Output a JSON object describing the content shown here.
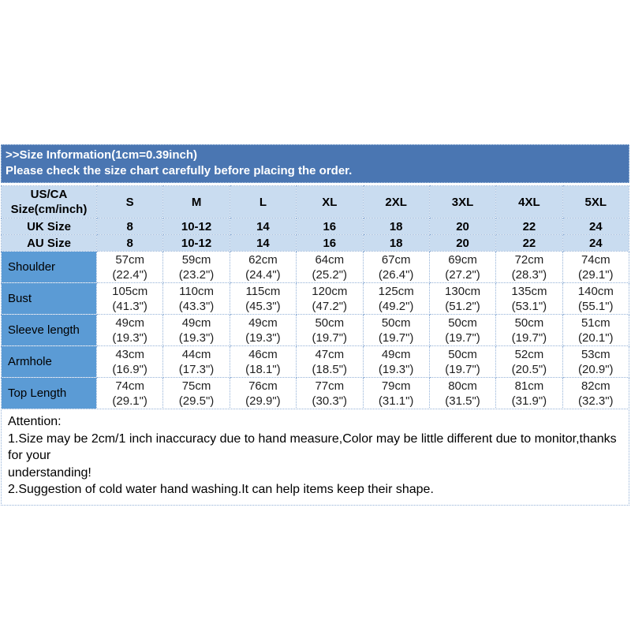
{
  "colors": {
    "banner_bg": "#4a76b2",
    "banner_text": "#ffffff",
    "header_row_bg": "#c9dcf0",
    "label_column_bg": "#5b9bd5",
    "dotted_border": "#93b1d7",
    "cell_bg": "#ffffff",
    "body_text": "#000000"
  },
  "chart_data": {
    "type": "table",
    "title": ">>Size Information(1cm=0.39inch)",
    "subtitle": "Please check the size chart carefully before placing the order.",
    "header": [
      "US/CA\nSize(cm/inch)",
      "S",
      "M",
      "L",
      "XL",
      "2XL",
      "3XL",
      "4XL",
      "5XL"
    ],
    "rows": [
      [
        "UK Size",
        "8",
        "10-12",
        "14",
        "16",
        "18",
        "20",
        "22",
        "24"
      ],
      [
        "AU Size",
        "8",
        "10-12",
        "14",
        "16",
        "18",
        "20",
        "22",
        "24"
      ],
      [
        "Shoulder",
        "57cm\n(22.4\")",
        "59cm\n(23.2\")",
        "62cm\n(24.4\")",
        "64cm\n(25.2\")",
        "67cm\n(26.4\")",
        "69cm\n(27.2\")",
        "72cm\n(28.3\")",
        "74cm\n(29.1\")"
      ],
      [
        "Bust",
        "105cm\n(41.3\")",
        "110cm\n(43.3\")",
        "115cm\n(45.3\")",
        "120cm\n(47.2\")",
        "125cm\n(49.2\")",
        "130cm\n(51.2\")",
        "135cm\n(53.1\")",
        "140cm\n(55.1\")"
      ],
      [
        "Sleeve length",
        "49cm\n(19.3\")",
        "49cm\n(19.3\")",
        "49cm\n(19.3\")",
        "50cm\n(19.7\")",
        "50cm\n(19.7\")",
        "50cm\n(19.7\")",
        "50cm\n(19.7\")",
        "51cm\n(20.1\")"
      ],
      [
        "Armhole",
        "43cm\n(16.9\")",
        "44cm\n(17.3\")",
        "46cm\n(18.1\")",
        "47cm\n(18.5\")",
        "49cm\n(19.3\")",
        "50cm\n(19.7\")",
        "52cm\n(20.5\")",
        "53cm\n(20.9\")"
      ],
      [
        "Top Length",
        "74cm\n(29.1\")",
        "75cm\n(29.5\")",
        "76cm\n(29.9\")",
        "77cm\n(30.3\")",
        "79cm\n(31.1\")",
        "80cm\n(31.5\")",
        "81cm\n(31.9\")",
        "82cm\n(32.3\")"
      ]
    ],
    "notes": [
      "Attention:",
      "1.Size may be 2cm/1 inch inaccuracy due to hand measure,Color may be little different due to monitor,thanks for your",
      "understanding!",
      "2.Suggestion of cold water hand washing.It can help items keep their shape."
    ]
  }
}
